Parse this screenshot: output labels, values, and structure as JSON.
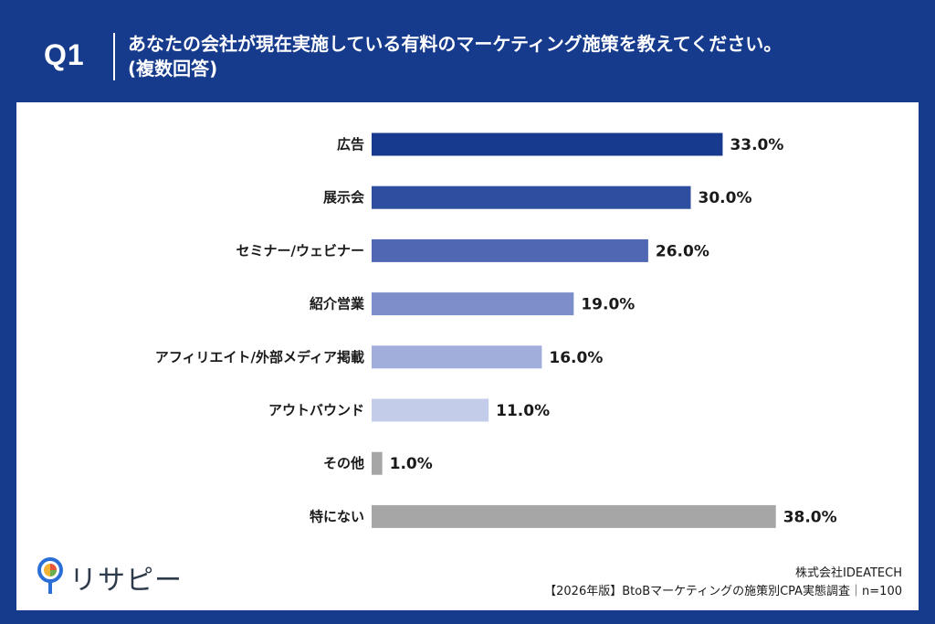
{
  "header": {
    "q_label": "Q1",
    "question_line1": "あなたの会社が現在実施している有料のマーケティング施策を教えてください。",
    "question_line2": "(複数回答)"
  },
  "chart_data": {
    "type": "bar",
    "orientation": "horizontal",
    "categories": [
      "広告",
      "展示会",
      "セミナー/ウェビナー",
      "紹介営業",
      "アフィリエイト/外部メディア掲載",
      "アウトバウンド",
      "その他",
      "特にない"
    ],
    "values": [
      33.0,
      30.0,
      26.0,
      19.0,
      16.0,
      11.0,
      1.0,
      38.0
    ],
    "value_labels": [
      "33.0%",
      "30.0%",
      "26.0%",
      "19.0%",
      "16.0%",
      "11.0%",
      "1.0%",
      "38.0%"
    ],
    "bar_colors": [
      "#173a8f",
      "#2e4ea0",
      "#5068b4",
      "#7d8fca",
      "#a1aedb",
      "#c3cce9",
      "#a6a6a6",
      "#a6a6a6"
    ],
    "xlim": [
      0,
      100
    ],
    "grid": false,
    "legend": "none"
  },
  "logo": {
    "text": "リサピー"
  },
  "footer": {
    "company": "株式会社IDEATECH",
    "survey": "【2026年版】BtoBマーケティングの施策別CPA実態調査｜n=100"
  },
  "colors": {
    "frame": "#163a8c",
    "panel": "#ffffff"
  }
}
